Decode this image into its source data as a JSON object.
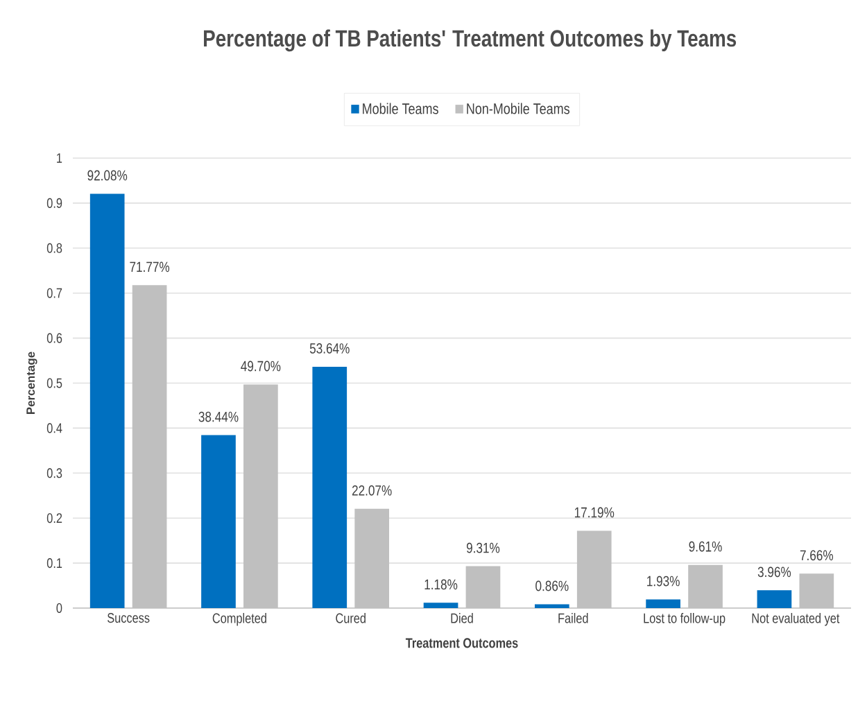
{
  "chart_data": {
    "type": "bar",
    "title": "Percentage of TB Patients' Treatment Outcomes by Teams",
    "xlabel": "Treatment Outcomes",
    "ylabel": "Percentage",
    "categories": [
      "Success",
      "Completed",
      "Cured",
      "Died",
      "Failed",
      "Lost to follow-up",
      "Not evaluated yet"
    ],
    "series": [
      {
        "name": "Mobile Teams",
        "color": "#0070c0",
        "values": [
          0.9208,
          0.3844,
          0.5364,
          0.0118,
          0.0086,
          0.0193,
          0.0396
        ],
        "value_labels": [
          "92.08%",
          "38.44%",
          "53.64%",
          "1.18%",
          "0.86%",
          "1.93%",
          "3.96%"
        ]
      },
      {
        "name": "Non-Mobile Teams",
        "color": "#bfbfbf",
        "values": [
          0.7177,
          0.497,
          0.2207,
          0.0931,
          0.1719,
          0.0961,
          0.0766
        ],
        "value_labels": [
          "71.77%",
          "49.70%",
          "22.07%",
          "9.31%",
          "17.19%",
          "9.61%",
          "7.66%"
        ]
      }
    ],
    "ylim": [
      0,
      1
    ],
    "yticks": [
      0,
      0.1,
      0.2,
      0.3,
      0.4,
      0.5,
      0.6,
      0.7,
      0.8,
      0.9,
      1
    ],
    "grid": "y",
    "legend": "top"
  }
}
